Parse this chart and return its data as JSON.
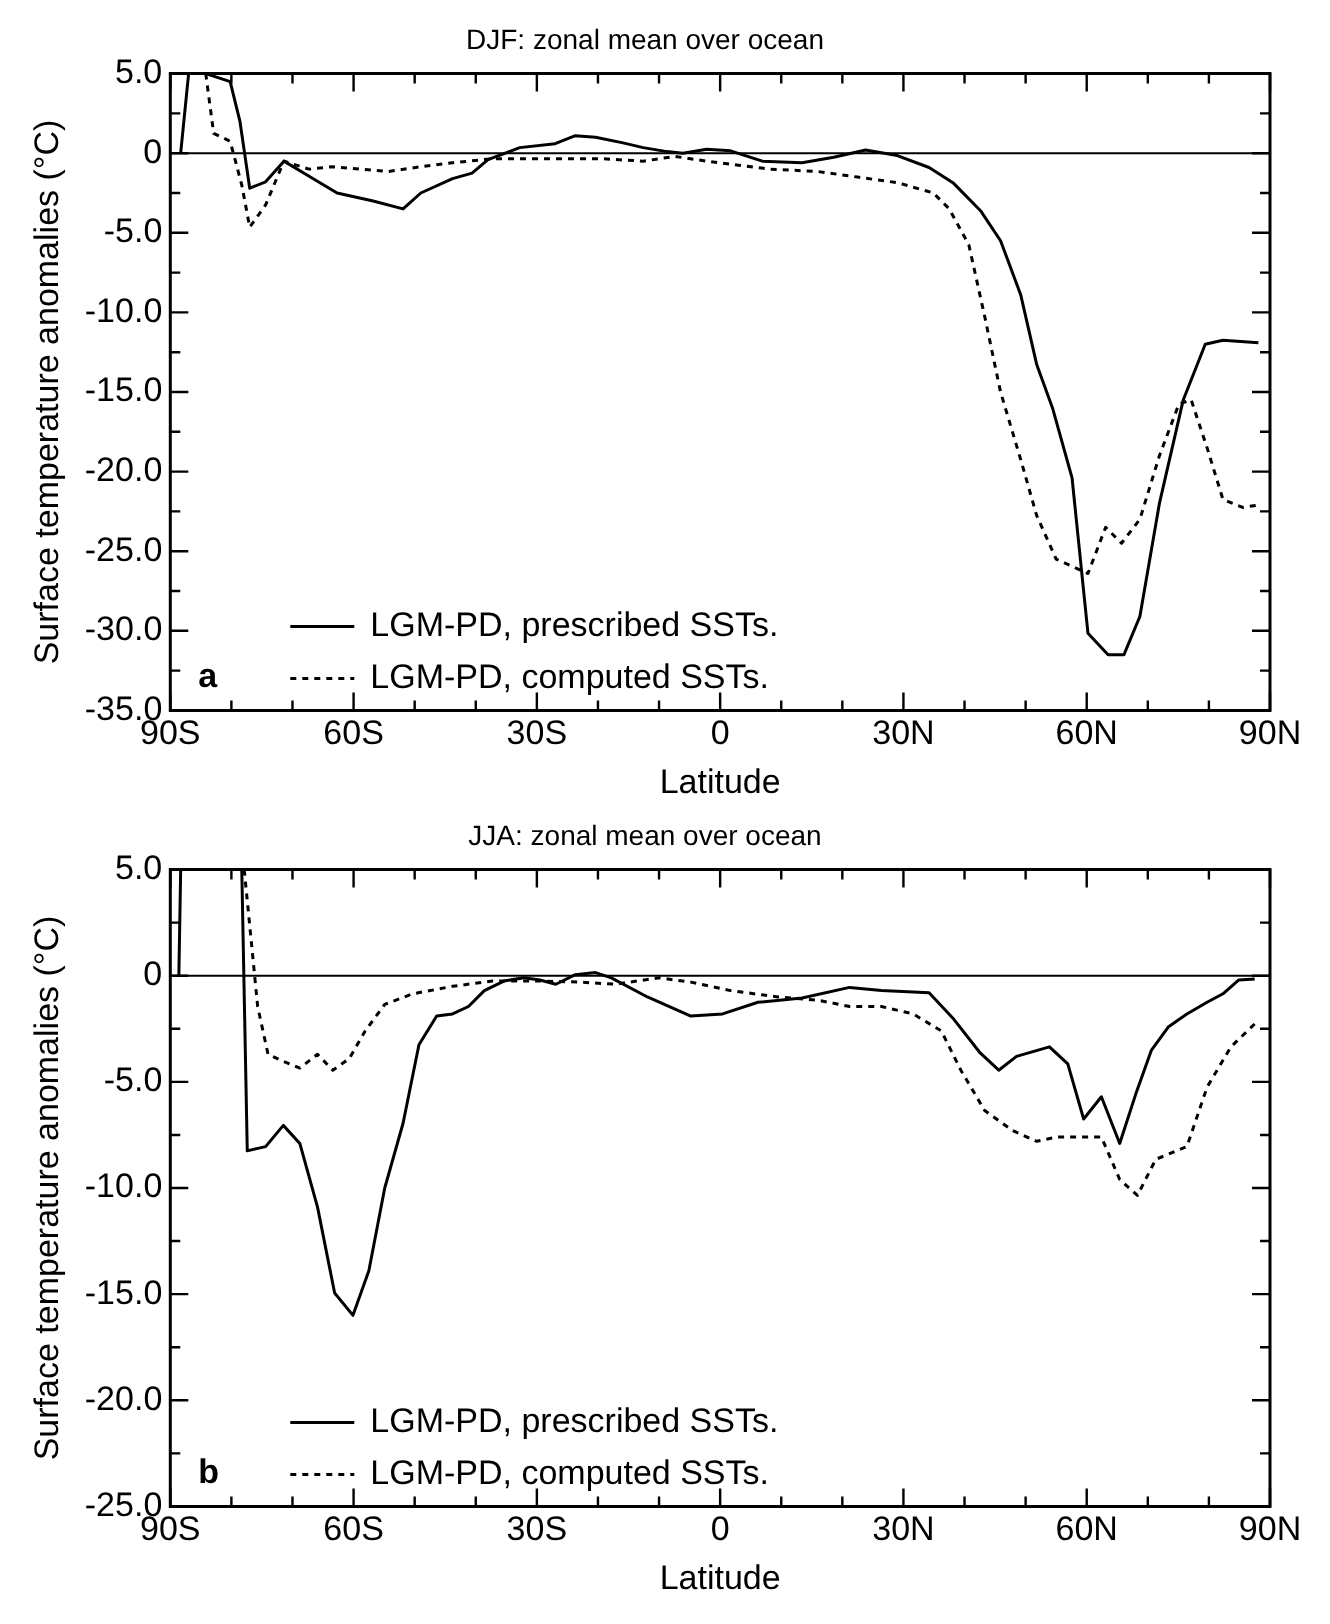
{
  "chart_data": [
    {
      "type": "line",
      "title": "DJF: zonal mean over ocean",
      "xlabel": "Latitude",
      "ylabel": "Surface temperature anomalies (°C)",
      "xlim": [
        -90,
        90
      ],
      "xticks": [
        {
          "value": -90,
          "label": "90S"
        },
        {
          "value": -80,
          "label": null
        },
        {
          "value": -70,
          "label": null
        },
        {
          "value": -60,
          "label": "60S"
        },
        {
          "value": -50,
          "label": null
        },
        {
          "value": -40,
          "label": null
        },
        {
          "value": -30,
          "label": "30S"
        },
        {
          "value": -20,
          "label": null
        },
        {
          "value": -10,
          "label": null
        },
        0,
        {
          "value": 10,
          "label": null
        },
        {
          "value": 20,
          "label": null
        },
        {
          "value": 30,
          "label": "30N"
        },
        {
          "value": 40,
          "label": null
        },
        {
          "value": 50,
          "label": null
        },
        {
          "value": 60,
          "label": "60N"
        },
        {
          "value": 70,
          "label": null
        },
        {
          "value": 80,
          "label": null
        },
        {
          "value": 90,
          "label": "90N"
        }
      ],
      "ylim": [
        -35,
        5
      ],
      "yticks": [
        {
          "value": 5,
          "label": "5.0"
        },
        {
          "value": 2.5,
          "label": null
        },
        0,
        {
          "value": -2.5,
          "label": null
        },
        {
          "value": -5,
          "label": "-5.0"
        },
        {
          "value": -7.5,
          "label": null
        },
        {
          "value": -10,
          "label": "-10.0"
        },
        {
          "value": -12.5,
          "label": null
        },
        {
          "value": -15,
          "label": "-15.0"
        },
        {
          "value": -17.5,
          "label": null
        },
        {
          "value": -20,
          "label": "-20.0"
        },
        {
          "value": -22.5,
          "label": null
        },
        {
          "value": -25,
          "label": "-25.0"
        },
        {
          "value": -27.5,
          "label": null
        },
        {
          "value": -30,
          "label": "-30.0"
        },
        {
          "value": -32.5,
          "label": null
        },
        {
          "value": -35,
          "label": "-35.0"
        }
      ],
      "grid": false,
      "legend": "bottom left",
      "annotations": [
        "a"
      ],
      "ref_lines": [
        {
          "axis": "y",
          "value": 0,
          "color": "#000000"
        }
      ],
      "series": [
        {
          "name": "LGM-PD, prescribed SSTs.",
          "color": "#000000",
          "line_style": "solid",
          "x": [
            -88.3,
            -87,
            -84.2,
            -80.2,
            -78.6,
            -77,
            -74.4,
            -71.4,
            -66.6,
            -62.7,
            -56.8,
            -51.9,
            -49,
            -43.8,
            -40.6,
            -38,
            -32.8,
            -27,
            -23.7,
            -20.4,
            -15.9,
            -12.6,
            -8.7,
            -6.1,
            -2.2,
            1.7,
            6.9,
            13.4,
            18.6,
            23.8,
            29,
            34.2,
            38.1,
            42.7,
            45.9,
            49.2,
            51.8,
            54.4,
            57.6,
            60.2,
            63.5,
            66.1,
            68.7,
            71.9,
            75.8,
            79.4,
            82.3,
            88.1
          ],
          "values": [
            0,
            5,
            5,
            4.5,
            2,
            -2.2,
            -1.8,
            -0.5,
            -1.6,
            -2.5,
            -3,
            -3.5,
            -2.5,
            -1.6,
            -1.25,
            -0.4,
            0.35,
            0.6,
            1.1,
            1,
            0.65,
            0.35,
            0.1,
            0,
            0.25,
            0.15,
            -0.5,
            -0.6,
            -0.25,
            0.2,
            -0.15,
            -0.9,
            -1.85,
            -3.65,
            -5.5,
            -8.9,
            -13.25,
            -16,
            -20.4,
            -30.15,
            -31.5,
            -31.5,
            -29.1,
            -22,
            -15.5,
            -12,
            -11.75,
            -11.9
          ]
        },
        {
          "name": "LGM-PD, computed SSTs.",
          "color": "#000000",
          "line_style": "dashed",
          "x": [
            -84.2,
            -82.9,
            -80.2,
            -78.3,
            -77,
            -74.4,
            -71.4,
            -67.3,
            -63.4,
            -58.8,
            -54.3,
            -49,
            -43.8,
            -37.3,
            -29.5,
            -19.1,
            -12.6,
            -7.4,
            -2.2,
            3,
            8.2,
            16,
            22.5,
            29,
            34.9,
            37.5,
            40.7,
            43.3,
            45.9,
            49.2,
            51.8,
            55,
            60.2,
            63.1,
            65.7,
            68.7,
            71.9,
            75.1,
            77.1,
            79.7,
            82.3,
            85.5,
            88.1
          ],
          "values": [
            5,
            1.25,
            0.75,
            -2,
            -4.65,
            -3.25,
            -0.5,
            -1,
            -0.85,
            -1,
            -1.15,
            -0.85,
            -0.6,
            -0.35,
            -0.35,
            -0.35,
            -0.5,
            -0.2,
            -0.5,
            -0.75,
            -1,
            -1.15,
            -1.5,
            -1.85,
            -2.5,
            -3.5,
            -5.75,
            -10.25,
            -15,
            -19.25,
            -22.75,
            -25.5,
            -26.4,
            -23.5,
            -24.5,
            -23,
            -19,
            -15.75,
            -15.5,
            -18.5,
            -21.75,
            -22.25,
            -22.1
          ]
        }
      ]
    },
    {
      "type": "line",
      "title": "JJA: zonal mean over ocean",
      "xlabel": "Latitude",
      "ylabel": "Surface temperature anomalies (°C)",
      "xlim": [
        -90,
        90
      ],
      "xticks": [
        {
          "value": -90,
          "label": "90S"
        },
        {
          "value": -80,
          "label": null
        },
        {
          "value": -70,
          "label": null
        },
        {
          "value": -60,
          "label": "60S"
        },
        {
          "value": -50,
          "label": null
        },
        {
          "value": -40,
          "label": null
        },
        {
          "value": -30,
          "label": "30S"
        },
        {
          "value": -20,
          "label": null
        },
        {
          "value": -10,
          "label": null
        },
        0,
        {
          "value": 10,
          "label": null
        },
        {
          "value": 20,
          "label": null
        },
        {
          "value": 30,
          "label": "30N"
        },
        {
          "value": 40,
          "label": null
        },
        {
          "value": 50,
          "label": null
        },
        {
          "value": 60,
          "label": "60N"
        },
        {
          "value": 70,
          "label": null
        },
        {
          "value": 80,
          "label": null
        },
        {
          "value": 90,
          "label": "90N"
        }
      ],
      "ylim": [
        -25,
        5
      ],
      "yticks": [
        {
          "value": 5,
          "label": "5.0"
        },
        {
          "value": 2.5,
          "label": null
        },
        0,
        {
          "value": -2.5,
          "label": null
        },
        {
          "value": -5,
          "label": "-5.0"
        },
        {
          "value": -7.5,
          "label": null
        },
        {
          "value": -10,
          "label": "-10.0"
        },
        {
          "value": -12.5,
          "label": null
        },
        {
          "value": -15,
          "label": "-15.0"
        },
        {
          "value": -17.5,
          "label": null
        },
        {
          "value": -20,
          "label": "-20.0"
        },
        {
          "value": -22.5,
          "label": null
        },
        {
          "value": -25,
          "label": "-25.0"
        }
      ],
      "grid": false,
      "legend": "bottom left",
      "annotations": [
        "b"
      ],
      "ref_lines": [
        {
          "axis": "y",
          "value": 0,
          "color": "#000000"
        }
      ],
      "series": [
        {
          "name": "LGM-PD, prescribed SSTs.",
          "color": "#000000",
          "line_style": "solid",
          "x": [
            -88.6,
            -88.3,
            -78.3,
            -77.4,
            -74.4,
            -71.5,
            -68.8,
            -65.9,
            -63.1,
            -60.1,
            -57.5,
            -54.9,
            -51.9,
            -49.3,
            -46.4,
            -43.8,
            -41.2,
            -38.6,
            -35.4,
            -32.1,
            -29.5,
            -26.9,
            -23.7,
            -20.4,
            -17.8,
            -11.9,
            -4.8,
            0.4,
            6.2,
            13.4,
            21.2,
            26.4,
            34.2,
            38.1,
            42.6,
            45.6,
            48.5,
            53.9,
            56.9,
            59.5,
            62.4,
            65.4,
            68,
            70.6,
            73.4,
            76.4,
            79.7,
            82.3,
            84.9,
            87.5
          ],
          "values": [
            0,
            5,
            5,
            -8.25,
            -8.05,
            -7.05,
            -7.9,
            -10.9,
            -14.95,
            -16,
            -13.9,
            -10,
            -6.95,
            -3.25,
            -1.9,
            -1.8,
            -1.45,
            -0.7,
            -0.25,
            -0.1,
            -0.2,
            -0.4,
            0.05,
            0.15,
            -0.1,
            -1,
            -1.9,
            -1.8,
            -1.25,
            -1.05,
            -0.55,
            -0.7,
            -0.8,
            -2,
            -3.65,
            -4.45,
            -3.8,
            -3.35,
            -4.15,
            -6.75,
            -5.7,
            -7.9,
            -5.6,
            -3.5,
            -2.4,
            -1.8,
            -1.25,
            -0.85,
            -0.2,
            -0.15
          ]
        },
        {
          "name": "LGM-PD, computed SSTs.",
          "color": "#000000",
          "line_style": "dashed",
          "x": [
            -77.9,
            -75.7,
            -74,
            -71.8,
            -68.8,
            -65.9,
            -63.4,
            -60.7,
            -58.1,
            -54.9,
            -50.3,
            -43.8,
            -37.3,
            -29.5,
            -23,
            -17.2,
            -10,
            -4.8,
            1.7,
            9.5,
            16,
            21.2,
            26.4,
            31.6,
            36.2,
            39.4,
            43.3,
            47.9,
            51.8,
            55,
            62.4,
            65.4,
            68.3,
            71.3,
            76.4,
            79.7,
            83.6,
            88.1
          ],
          "values": [
            5,
            -1.45,
            -3.7,
            -4,
            -4.35,
            -3.7,
            -4.45,
            -3.9,
            -2.6,
            -1.35,
            -0.85,
            -0.5,
            -0.25,
            -0.25,
            -0.3,
            -0.4,
            -0.1,
            -0.3,
            -0.7,
            -1,
            -1.15,
            -1.45,
            -1.45,
            -1.8,
            -2.6,
            -4.45,
            -6.35,
            -7.3,
            -7.8,
            -7.6,
            -7.6,
            -9.6,
            -10.35,
            -8.65,
            -8.05,
            -5.25,
            -3.35,
            -2.1
          ]
        }
      ]
    }
  ]
}
